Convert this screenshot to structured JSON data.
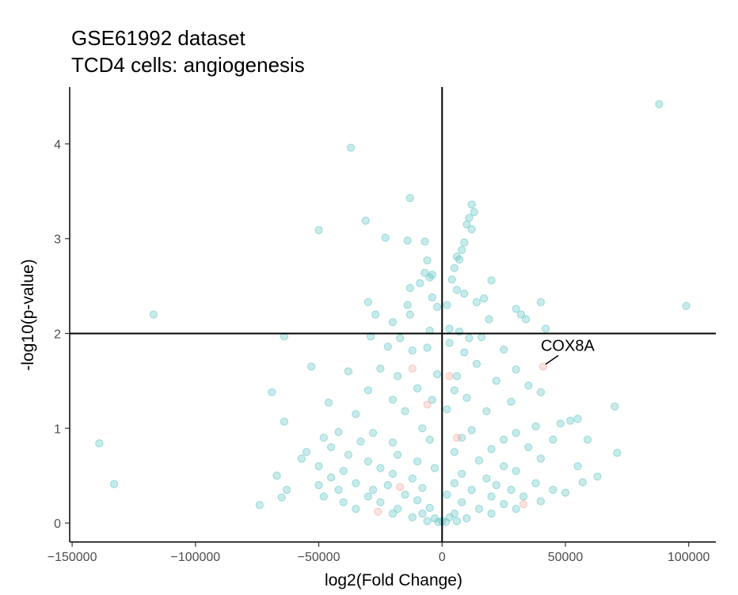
{
  "chart_data": {
    "type": "scatter",
    "title": "GSE61992 dataset",
    "subtitle": "TCD4 cells: angiogenesis",
    "xlabel": "log2(Fold Change)",
    "ylabel": "-log10(p-value)",
    "xlim": [
      -151000,
      111000
    ],
    "ylim": [
      -0.2,
      4.6
    ],
    "x_ticks": [
      -150000,
      -100000,
      -50000,
      0,
      50000,
      100000
    ],
    "x_tick_labels": [
      "−150000",
      "−100000",
      "−50000",
      "0",
      "50000",
      "100000"
    ],
    "y_ticks": [
      0,
      1,
      2,
      3,
      4
    ],
    "y_tick_labels": [
      "0",
      "1",
      "2",
      "3",
      "4"
    ],
    "reference_lines": {
      "x": 0,
      "y": 2
    },
    "grid": false,
    "colors": {
      "main": "#5fc4c4",
      "highlight": "#f4a8a2",
      "line": "#000000"
    },
    "series": [
      {
        "color": "#5fc4c4",
        "points": [
          [
            88000,
            4.42
          ],
          [
            -37000,
            3.96
          ],
          [
            -13000,
            3.43
          ],
          [
            12000,
            3.36
          ],
          [
            13000,
            3.28
          ],
          [
            11000,
            3.22
          ],
          [
            -31000,
            3.19
          ],
          [
            10000,
            3.15
          ],
          [
            12000,
            3.1
          ],
          [
            -50000,
            3.09
          ],
          [
            -23000,
            3.01
          ],
          [
            -14000,
            2.98
          ],
          [
            -7000,
            2.97
          ],
          [
            9000,
            2.96
          ],
          [
            8000,
            2.88
          ],
          [
            6000,
            2.81
          ],
          [
            7000,
            2.78
          ],
          [
            -6000,
            2.77
          ],
          [
            5000,
            2.69
          ],
          [
            -7000,
            2.64
          ],
          [
            -4000,
            2.62
          ],
          [
            -5000,
            2.59
          ],
          [
            4000,
            2.57
          ],
          [
            20000,
            2.56
          ],
          [
            -9000,
            2.53
          ],
          [
            -13000,
            2.48
          ],
          [
            6000,
            2.46
          ],
          [
            9000,
            2.42
          ],
          [
            -4000,
            2.38
          ],
          [
            17000,
            2.37
          ],
          [
            -30000,
            2.33
          ],
          [
            40000,
            2.33
          ],
          [
            14000,
            2.33
          ],
          [
            2000,
            2.3
          ],
          [
            -14000,
            2.3
          ],
          [
            -2000,
            2.28
          ],
          [
            99000,
            2.29
          ],
          [
            30000,
            2.26
          ],
          [
            -117000,
            2.2
          ],
          [
            -27000,
            2.2
          ],
          [
            -13000,
            2.2
          ],
          [
            32000,
            2.2
          ],
          [
            19000,
            2.15
          ],
          [
            34000,
            2.15
          ],
          [
            -20000,
            2.12
          ],
          [
            42000,
            2.05
          ],
          [
            3000,
            2.05
          ],
          [
            -5000,
            2.03
          ],
          [
            7000,
            2.02
          ],
          [
            -64000,
            1.97
          ],
          [
            -29000,
            1.97
          ],
          [
            -17000,
            1.95
          ],
          [
            11000,
            1.95
          ],
          [
            16000,
            1.96
          ],
          [
            -22000,
            1.86
          ],
          [
            -6000,
            1.85
          ],
          [
            3000,
            1.9
          ],
          [
            25000,
            1.83
          ],
          [
            -12000,
            1.82
          ],
          [
            9000,
            1.8
          ],
          [
            -53000,
            1.65
          ],
          [
            -38000,
            1.6
          ],
          [
            -25000,
            1.63
          ],
          [
            14000,
            1.68
          ],
          [
            30000,
            1.62
          ],
          [
            -18000,
            1.55
          ],
          [
            -2000,
            1.57
          ],
          [
            6000,
            1.55
          ],
          [
            22000,
            1.5
          ],
          [
            35000,
            1.45
          ],
          [
            -69000,
            1.38
          ],
          [
            -30000,
            1.4
          ],
          [
            -10000,
            1.42
          ],
          [
            5000,
            1.4
          ],
          [
            40000,
            1.38
          ],
          [
            -46000,
            1.27
          ],
          [
            -20000,
            1.3
          ],
          [
            -4000,
            1.3
          ],
          [
            10000,
            1.32
          ],
          [
            28000,
            1.28
          ],
          [
            -64000,
            1.07
          ],
          [
            -35000,
            1.15
          ],
          [
            -15000,
            1.18
          ],
          [
            2000,
            1.2
          ],
          [
            18000,
            1.18
          ],
          [
            70000,
            1.23
          ],
          [
            52000,
            1.08
          ],
          [
            55000,
            1.1
          ],
          [
            48000,
            1.05
          ],
          [
            38000,
            1.02
          ],
          [
            -42000,
            0.96
          ],
          [
            -28000,
            0.95
          ],
          [
            -8000,
            1.0
          ],
          [
            12000,
            0.98
          ],
          [
            30000,
            0.95
          ],
          [
            -48000,
            0.9
          ],
          [
            -33000,
            0.86
          ],
          [
            -20000,
            0.85
          ],
          [
            -5000,
            0.88
          ],
          [
            8000,
            0.9
          ],
          [
            25000,
            0.88
          ],
          [
            45000,
            0.88
          ],
          [
            59000,
            0.88
          ],
          [
            -139000,
            0.84
          ],
          [
            -45000,
            0.8
          ],
          [
            -55000,
            0.75
          ],
          [
            -38000,
            0.72
          ],
          [
            -18000,
            0.72
          ],
          [
            5000,
            0.75
          ],
          [
            20000,
            0.78
          ],
          [
            35000,
            0.8
          ],
          [
            71000,
            0.74
          ],
          [
            -57000,
            0.68
          ],
          [
            -30000,
            0.65
          ],
          [
            -10000,
            0.65
          ],
          [
            15000,
            0.66
          ],
          [
            40000,
            0.68
          ],
          [
            -50000,
            0.6
          ],
          [
            -25000,
            0.58
          ],
          [
            -3000,
            0.58
          ],
          [
            25000,
            0.6
          ],
          [
            55000,
            0.6
          ],
          [
            -40000,
            0.55
          ],
          [
            -20000,
            0.52
          ],
          [
            8000,
            0.52
          ],
          [
            30000,
            0.55
          ],
          [
            -67000,
            0.5
          ],
          [
            -45000,
            0.48
          ],
          [
            -12000,
            0.47
          ],
          [
            18000,
            0.47
          ],
          [
            63000,
            0.49
          ],
          [
            -133000,
            0.41
          ],
          [
            -50000,
            0.4
          ],
          [
            -35000,
            0.42
          ],
          [
            -22000,
            0.4
          ],
          [
            5000,
            0.42
          ],
          [
            22000,
            0.4
          ],
          [
            38000,
            0.42
          ],
          [
            57000,
            0.43
          ],
          [
            -63000,
            0.35
          ],
          [
            -42000,
            0.35
          ],
          [
            -28000,
            0.35
          ],
          [
            -8000,
            0.37
          ],
          [
            12000,
            0.35
          ],
          [
            28000,
            0.35
          ],
          [
            45000,
            0.35
          ],
          [
            50000,
            0.32
          ],
          [
            -65000,
            0.27
          ],
          [
            -48000,
            0.28
          ],
          [
            -30000,
            0.28
          ],
          [
            -15000,
            0.3
          ],
          [
            2000,
            0.3
          ],
          [
            20000,
            0.28
          ],
          [
            33000,
            0.28
          ],
          [
            -74000,
            0.19
          ],
          [
            -40000,
            0.22
          ],
          [
            -25000,
            0.22
          ],
          [
            -10000,
            0.24
          ],
          [
            8000,
            0.22
          ],
          [
            25000,
            0.2
          ],
          [
            40000,
            0.23
          ],
          [
            -35000,
            0.15
          ],
          [
            -18000,
            0.15
          ],
          [
            -5000,
            0.16
          ],
          [
            15000,
            0.15
          ],
          [
            30000,
            0.15
          ],
          [
            -20000,
            0.1
          ],
          [
            -8000,
            0.1
          ],
          [
            5000,
            0.1
          ],
          [
            20000,
            0.1
          ],
          [
            -12000,
            0.06
          ],
          [
            -3000,
            0.05
          ],
          [
            3000,
            0.06
          ],
          [
            10000,
            0.05
          ],
          [
            -6000,
            0.02
          ],
          [
            0,
            0.02
          ],
          [
            6000,
            0.02
          ],
          [
            -1500,
            0.01
          ],
          [
            1500,
            0.01
          ]
        ]
      },
      {
        "color": "#f4a8a2",
        "points": [
          [
            41000,
            1.65
          ],
          [
            -12000,
            1.63
          ],
          [
            -6000,
            1.25
          ],
          [
            -17000,
            0.38
          ],
          [
            33000,
            0.2
          ],
          [
            -26000,
            0.12
          ],
          [
            6000,
            0.9
          ],
          [
            3000,
            1.55
          ]
        ]
      }
    ],
    "annotations": [
      {
        "text": "COX8A",
        "x": 41000,
        "y": 1.65
      }
    ]
  }
}
